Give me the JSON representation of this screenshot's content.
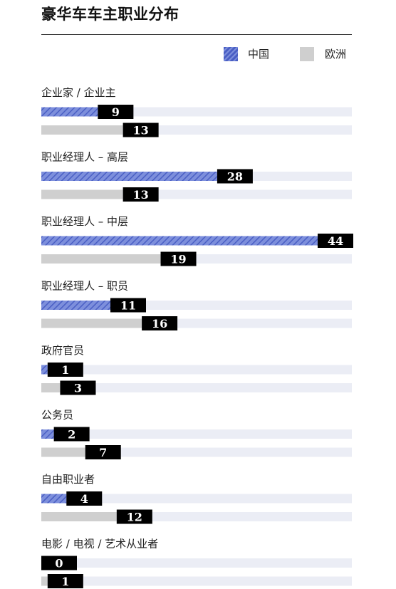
{
  "colors": {
    "china": "#4a5fc4",
    "china_stripe": "#7d8fdc",
    "europe": "#cfcfcf",
    "track": "#ebedf5",
    "label_box": "#000000"
  },
  "chart_data": {
    "type": "bar",
    "orientation": "horizontal",
    "title": "豪华车车主职业分布",
    "categories": [
      "企业家 / 企业主",
      "职业经理人 – 高层",
      "职业经理人 – 中层",
      "职业经理人 – 职员",
      "政府官员",
      "公务员",
      "自由职业者",
      "电影 / 电视 / 艺术从业者"
    ],
    "series": [
      {
        "name": "中国",
        "values": [
          9,
          28,
          44,
          11,
          1,
          2,
          4,
          0
        ]
      },
      {
        "name": "欧洲",
        "values": [
          13,
          13,
          19,
          16,
          3,
          7,
          12,
          1
        ]
      }
    ],
    "xlim": [
      0,
      44
    ],
    "grid": false,
    "legend": "top-right"
  }
}
